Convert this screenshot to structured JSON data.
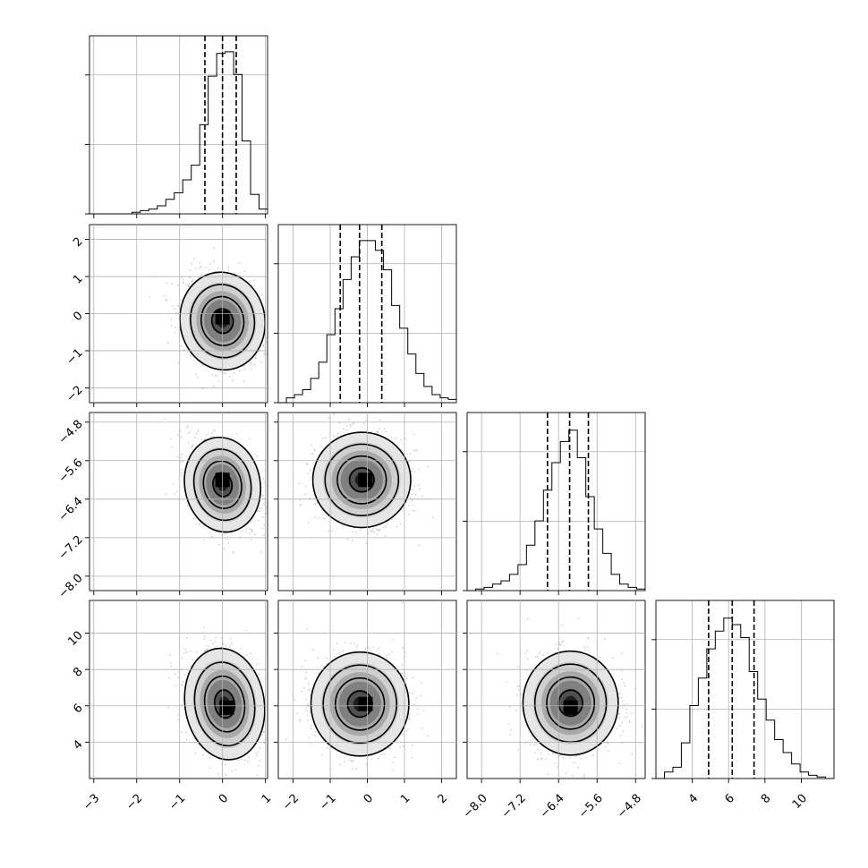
{
  "chart_data": {
    "type": "corner",
    "title": "",
    "grid": true,
    "colors": {
      "line": "#000000",
      "grid": "#b0b0b0",
      "points": "#9a9a9a"
    },
    "parameters": [
      {
        "range": [
          -3.1,
          1.05
        ],
        "ticks": [
          -3,
          -2,
          -1,
          0,
          1
        ],
        "tick_labels": [
          "−3",
          "−2",
          "−1",
          "0",
          "1"
        ]
      },
      {
        "range": [
          -2.4,
          2.4
        ],
        "ticks": [
          -2,
          -1,
          0,
          1,
          2
        ],
        "tick_labels": [
          "−2",
          "−1",
          "0",
          "1",
          "2"
        ]
      },
      {
        "range": [
          -8.3,
          -4.6
        ],
        "ticks": [
          -8.0,
          -7.2,
          -6.4,
          -5.6,
          -4.8
        ],
        "tick_labels": [
          "−8.0",
          "−7.2",
          "−6.4",
          "−5.6",
          "−4.8"
        ]
      },
      {
        "range": [
          2.0,
          11.8
        ],
        "ticks": [
          4,
          6,
          8,
          10
        ],
        "tick_labels": [
          "4",
          "6",
          "8",
          "10"
        ]
      }
    ],
    "quantiles": [
      [
        -0.41,
        0.0,
        0.32
      ],
      [
        -0.73,
        -0.21,
        0.39
      ],
      [
        -6.63,
        -6.17,
        -5.78
      ],
      [
        4.9,
        6.2,
        7.4
      ]
    ],
    "histograms": [
      {
        "bins": [
          -3.1,
          1.05
        ],
        "counts": [
          0,
          0,
          0,
          0,
          0,
          0.01,
          0.02,
          0.03,
          0.05,
          0.09,
          0.13,
          0.21,
          0.3,
          0.55,
          0.85,
          0.99,
          1.0,
          0.86,
          0.45,
          0.12,
          0.03
        ]
      },
      {
        "bins": [
          -2.4,
          2.4
        ],
        "counts": [
          0,
          0.03,
          0.05,
          0.08,
          0.15,
          0.25,
          0.42,
          0.58,
          0.76,
          0.9,
          1.0,
          1.0,
          0.94,
          0.82,
          0.6,
          0.46,
          0.3,
          0.18,
          0.1,
          0.05,
          0.03,
          0.02
        ]
      },
      {
        "bins": [
          -8.3,
          -4.6
        ],
        "counts": [
          0,
          0.01,
          0.02,
          0.04,
          0.06,
          0.1,
          0.16,
          0.28,
          0.43,
          0.62,
          0.79,
          0.92,
          0.99,
          0.82,
          0.58,
          0.38,
          0.23,
          0.1,
          0.04,
          0.02,
          0.01
        ]
      },
      {
        "bins": [
          2.0,
          11.8
        ],
        "counts": [
          0,
          0.04,
          0.07,
          0.22,
          0.45,
          0.62,
          0.8,
          0.91,
          0.99,
          0.95,
          0.87,
          0.66,
          0.49,
          0.36,
          0.24,
          0.16,
          0.09,
          0.04,
          0.02,
          0.01,
          0
        ]
      }
    ],
    "pairs": [
      {
        "x": 0,
        "y": 1,
        "center": [
          0.0,
          -0.2
        ],
        "sd": [
          0.45,
          0.6
        ],
        "corr": -0.25,
        "hotspot": [
          0.0,
          -0.1
        ]
      },
      {
        "x": 0,
        "y": 2,
        "center": [
          0.0,
          -6.1
        ],
        "sd": [
          0.4,
          0.45
        ],
        "corr": -0.3,
        "hotspot": [
          0.0,
          -6.0
        ]
      },
      {
        "x": 1,
        "y": 2,
        "center": [
          -0.15,
          -6.0
        ],
        "sd": [
          0.6,
          0.45
        ],
        "corr": 0.0,
        "hotspot": [
          -0.05,
          -6.0
        ]
      },
      {
        "x": 0,
        "y": 3,
        "center": [
          0.05,
          6.1
        ],
        "sd": [
          0.42,
          1.4
        ],
        "corr": -0.25,
        "hotspot": [
          0.1,
          5.9
        ]
      },
      {
        "x": 1,
        "y": 3,
        "center": [
          -0.2,
          6.1
        ],
        "sd": [
          0.6,
          1.3
        ],
        "corr": 0.0,
        "hotspot": [
          -0.05,
          6.1
        ]
      },
      {
        "x": 2,
        "y": 3,
        "center": [
          -6.15,
          6.15
        ],
        "sd": [
          0.45,
          1.3
        ],
        "corr": 0.0,
        "hotspot": [
          -6.15,
          5.9
        ]
      }
    ],
    "contour_levels_sigma": [
      0.5,
      1.0,
      1.5,
      2.0
    ]
  }
}
